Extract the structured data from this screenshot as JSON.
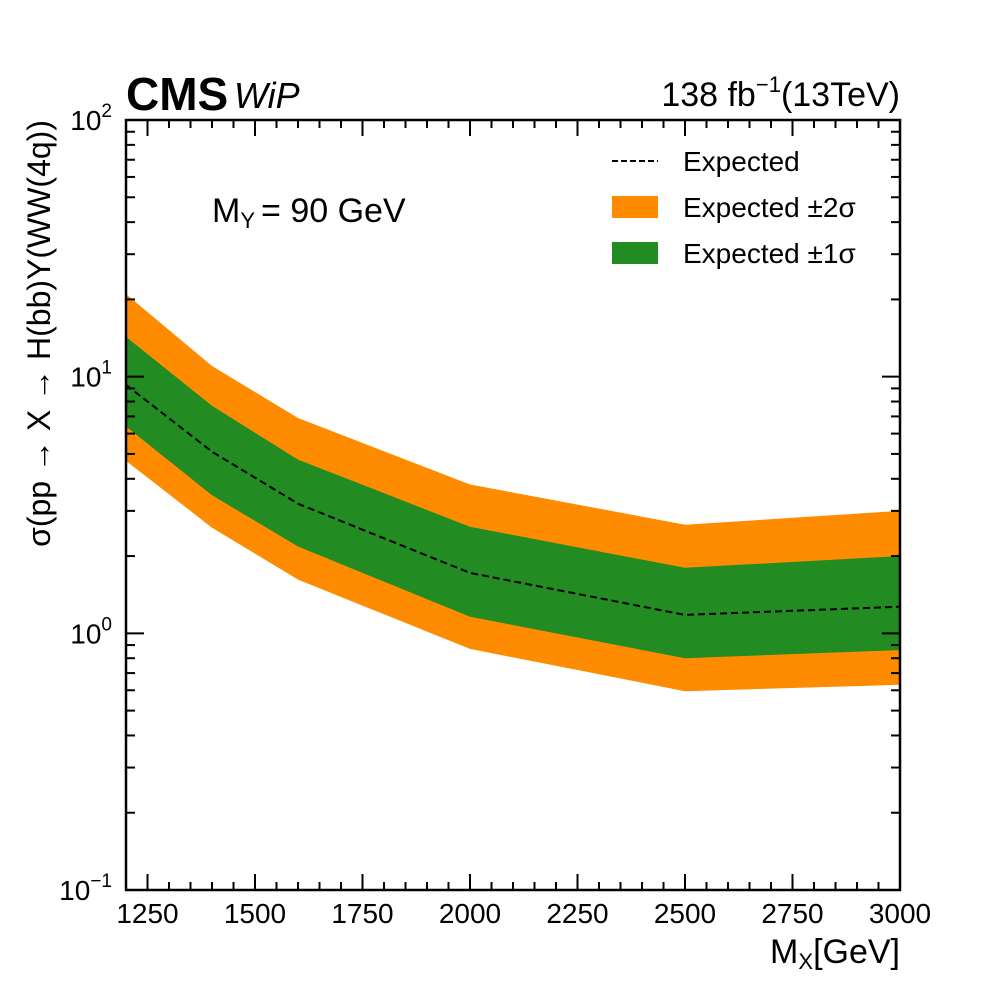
{
  "header": {
    "experiment": "CMS",
    "status": "WiP",
    "lumi_value": "138 fb",
    "lumi_exp": "−1",
    "energy": "(13TeV)"
  },
  "annotation": {
    "mass_label": "M",
    "mass_sub": "Y",
    "mass_value": "= 90 GeV"
  },
  "chart_data": {
    "type": "line",
    "xlabel": "M",
    "xlabel_sub": "X",
    "xlabel_unit": "[GeV]",
    "ylabel": "σ(pp → X → H(bb)Y(WW(4q))",
    "xlim": [
      1200,
      3000
    ],
    "ylim": [
      0.1,
      100
    ],
    "yscale": "log",
    "x_ticks": [
      1250,
      1500,
      1750,
      2000,
      2250,
      2500,
      2750,
      3000
    ],
    "y_ticks": [
      {
        "base": "10",
        "exp": "−1",
        "value": 0.1
      },
      {
        "base": "10",
        "exp": "0",
        "value": 1
      },
      {
        "base": "10",
        "exp": "1",
        "value": 10
      },
      {
        "base": "10",
        "exp": "2",
        "value": 100
      }
    ],
    "legend_position": "top-right",
    "legend": [
      {
        "label": "Expected",
        "kind": "line",
        "color": "#000000"
      },
      {
        "label": "Expected ±2σ",
        "kind": "band",
        "color": "#ff8c00"
      },
      {
        "label": "Expected ±1σ",
        "kind": "band",
        "color": "#228b22"
      }
    ],
    "x": [
      1200,
      1400,
      1600,
      2000,
      2500,
      3000
    ],
    "series": [
      {
        "name": "Expected",
        "values": [
          9.3,
          5.1,
          3.2,
          1.72,
          1.18,
          1.27
        ]
      },
      {
        "name": "Expected ±1σ",
        "lower": [
          6.4,
          3.45,
          2.18,
          1.16,
          0.8,
          0.86
        ],
        "upper": [
          14.3,
          7.7,
          4.75,
          2.6,
          1.8,
          2.0
        ]
      },
      {
        "name": "Expected ±2σ",
        "lower": [
          4.7,
          2.58,
          1.62,
          0.87,
          0.595,
          0.63
        ],
        "upper": [
          21.0,
          11.0,
          6.9,
          3.8,
          2.65,
          3.0
        ]
      }
    ]
  }
}
